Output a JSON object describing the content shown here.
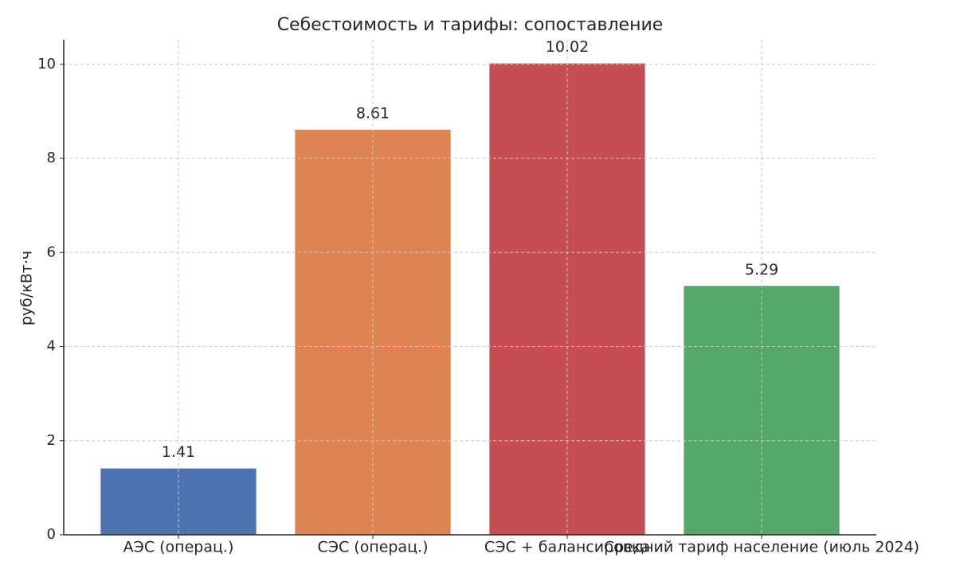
{
  "chart_data": {
    "type": "bar",
    "title": "Себестоимость и тарифы: сопоставление",
    "y_label": "руб/кВт·ч",
    "categories": [
      "АЭС (операц.)",
      "СЭС (операц.)",
      "СЭС + балансировка",
      "Средний тариф население (июль 2024)"
    ],
    "values": [
      1.41,
      8.61,
      10.02,
      5.29
    ],
    "colors": [
      "#4c72b0",
      "#dd8452",
      "#c44e52",
      "#55a868"
    ],
    "ylim": [
      0,
      10.521
    ],
    "yticks": [
      0,
      2,
      4,
      6,
      8,
      10
    ],
    "grid": true
  }
}
